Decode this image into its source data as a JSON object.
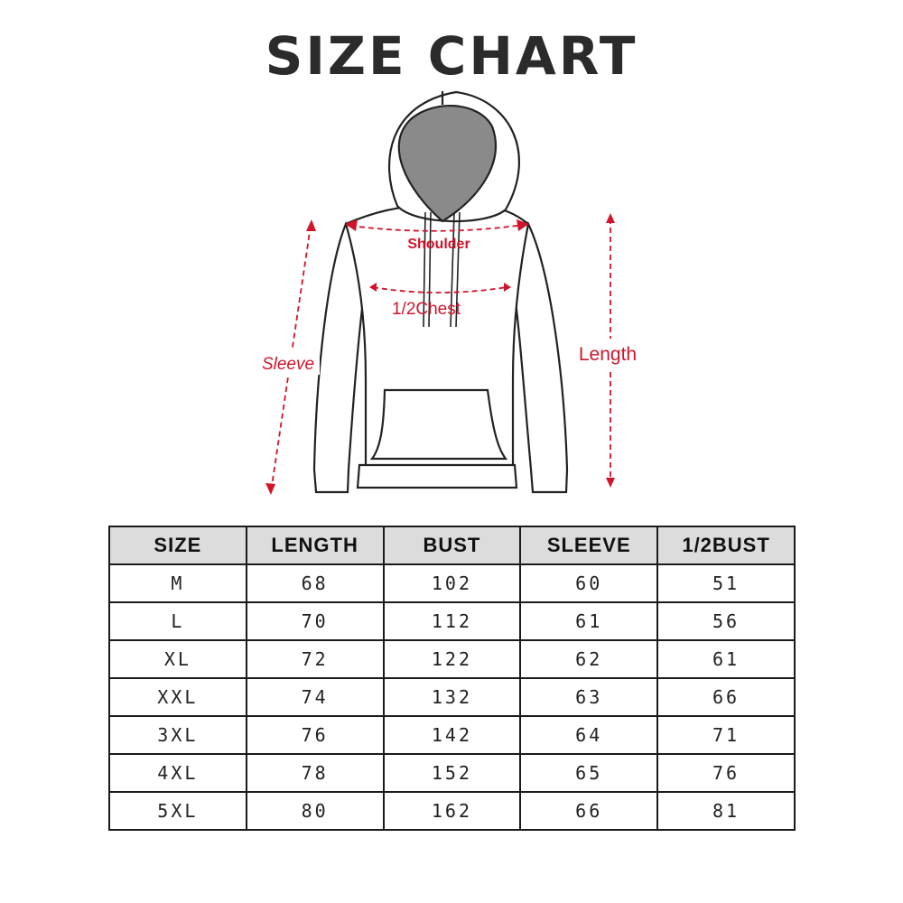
{
  "title": "SIZE CHART",
  "diagram": {
    "labels": {
      "shoulder": "Shoulder",
      "chest": "1/2Chest",
      "sleeve": "Sleeve",
      "length": "Length"
    },
    "accent_color": "#d0152a"
  },
  "table": {
    "headers": [
      "SIZE",
      "LENGTH",
      "BUST",
      "SLEEVE",
      "1/2BUST"
    ],
    "rows": [
      [
        "M",
        "68",
        "102",
        "60",
        "51"
      ],
      [
        "L",
        "70",
        "112",
        "61",
        "56"
      ],
      [
        "XL",
        "72",
        "122",
        "62",
        "61"
      ],
      [
        "XXL",
        "74",
        "132",
        "63",
        "66"
      ],
      [
        "3XL",
        "76",
        "142",
        "64",
        "71"
      ],
      [
        "4XL",
        "78",
        "152",
        "65",
        "76"
      ],
      [
        "5XL",
        "80",
        "162",
        "66",
        "81"
      ]
    ]
  }
}
